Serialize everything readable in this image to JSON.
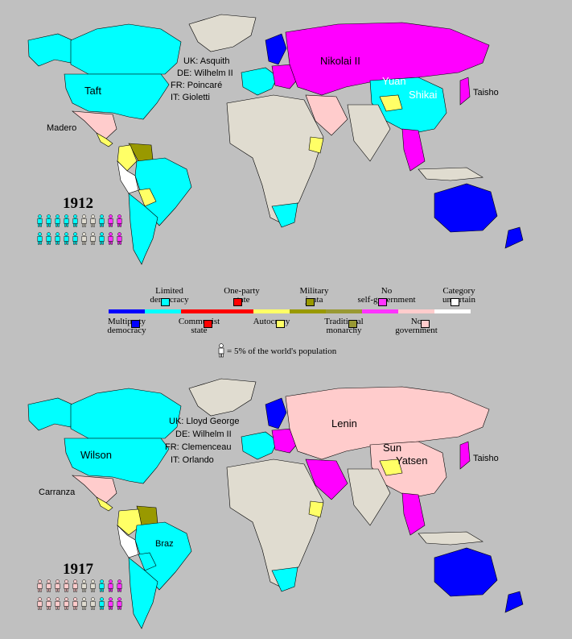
{
  "colors": {
    "multiparty_democracy": "#0000ff",
    "limited_democracy": "#00ffff",
    "communist_state": "#ff0000",
    "one_party_state": "#ff0000",
    "autocracy": "#ffff66",
    "military_junta": "#999900",
    "traditional_monarchy": "#999933",
    "no_self_government": "#ff33ff",
    "no_government": "#ffcccc",
    "category_uncertain": "#ffffff",
    "land_no_self_gov": "#e0dcd0",
    "ocean": "#c0c0c0"
  },
  "legend": {
    "items": [
      {
        "key": "multiparty_democracy",
        "label": "Multiparty democracy",
        "position": "below"
      },
      {
        "key": "limited_democracy",
        "label": "Limited democracy",
        "position": "above"
      },
      {
        "key": "communist_state",
        "label": "Communist state",
        "position": "below"
      },
      {
        "key": "one_party_state",
        "label": "One-party state",
        "position": "above"
      },
      {
        "key": "autocracy",
        "label": "Autocracy",
        "position": "below"
      },
      {
        "key": "military_junta",
        "label": "Military junta",
        "position": "above"
      },
      {
        "key": "traditional_monarchy",
        "label": "Traditional monarchy",
        "position": "below"
      },
      {
        "key": "no_self_government",
        "label": "No self-government",
        "position": "above"
      },
      {
        "key": "no_government",
        "label": "No government",
        "position": "below"
      },
      {
        "key": "category_uncertain",
        "label": "Category uncertain",
        "position": "above"
      }
    ],
    "population_note": "= 5% of the world's population"
  },
  "maps": [
    {
      "year": "1912",
      "leaders": {
        "usa": "Taft",
        "mexico": "Madero",
        "europe": [
          "UK: Asquith",
          "DE: Wilhelm II",
          "FR: Poincaré",
          "IT: Gioletti"
        ],
        "russia": "Nikolai II",
        "china_1": "Yuan",
        "china_2": "Shikai",
        "japan": "Taisho"
      },
      "russia_color": "#ff00ff",
      "china_color": "#00ffff",
      "usa_color": "#00ffff",
      "brazil_color": "#00ffff",
      "population_icons": [
        "limited_democracy",
        "limited_democracy",
        "limited_democracy",
        "limited_democracy",
        "limited_democracy",
        "land_no_self_gov",
        "land_no_self_gov",
        "limited_democracy",
        "no_self_government",
        "no_self_government",
        "limited_democracy",
        "limited_democracy",
        "limited_democracy",
        "limited_democracy",
        "limited_democracy",
        "land_no_self_gov",
        "land_no_self_gov",
        "limited_democracy",
        "no_self_government",
        "no_self_government"
      ]
    },
    {
      "year": "1917",
      "leaders": {
        "usa": "Wilson",
        "mexico": "Carranza",
        "europe": [
          "UK: Lloyd George",
          "DE: Wilhelm II",
          "FR: Clemenceau",
          "IT: Orlando"
        ],
        "russia": "Lenin",
        "china_1": "Sun",
        "china_2": "Yatsen",
        "japan": "Taisho",
        "brazil": "Braz"
      },
      "russia_color": "#ffcccc",
      "china_color": "#ffcccc",
      "usa_color": "#00ffff",
      "brazil_color": "#00ffff",
      "population_icons": [
        "no_government",
        "no_government",
        "no_government",
        "no_government",
        "no_government",
        "land_no_self_gov",
        "land_no_self_gov",
        "limited_democracy",
        "no_self_government",
        "no_self_government",
        "no_government",
        "no_government",
        "no_government",
        "no_government",
        "no_government",
        "land_no_self_gov",
        "land_no_self_gov",
        "limited_democracy",
        "no_self_government",
        "no_self_government"
      ]
    }
  ]
}
